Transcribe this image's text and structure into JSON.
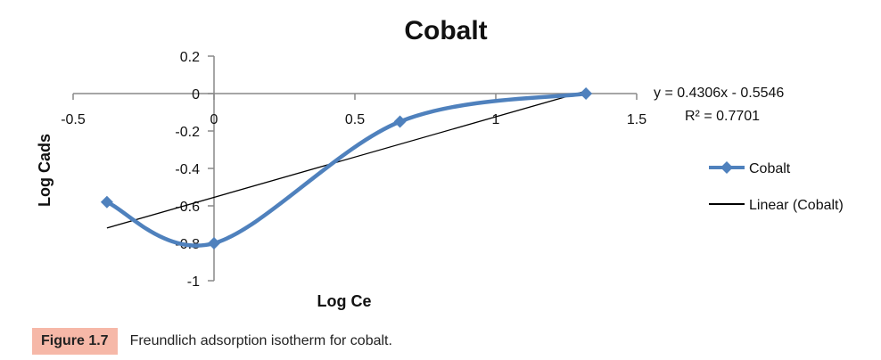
{
  "chart_data": {
    "type": "scatter",
    "title": "Cobalt",
    "xlabel": "Log Ce",
    "ylabel": "Log Cads",
    "xlim": [
      -0.5,
      1.5
    ],
    "ylim": [
      -1,
      0.2
    ],
    "x_ticks": [
      "-0.5",
      "0",
      "0.5",
      "1",
      "1.5"
    ],
    "y_ticks": [
      "0.2",
      "0",
      "-0.2",
      "-0.4",
      "-0.6",
      "-0.8",
      "-1"
    ],
    "series": [
      {
        "name": "Cobalt",
        "color": "#4f81bd",
        "marker": "diamond",
        "smooth": true,
        "x": [
          -0.38,
          0.0,
          0.66,
          1.32
        ],
        "y": [
          -0.58,
          -0.8,
          -0.15,
          0.0
        ]
      }
    ],
    "trendline": {
      "name": "Linear (Cobalt)",
      "color": "#000000",
      "slope": 0.4306,
      "intercept": -0.5546,
      "x_range": [
        -0.38,
        1.32
      ],
      "equation": "y = 0.4306x - 0.5546",
      "r_squared": "R² = 0.7701"
    },
    "legend_position": "right",
    "grid": false
  },
  "caption": {
    "label": "Figure 1.7",
    "text": "Freundlich adsorption isotherm for cobalt."
  }
}
